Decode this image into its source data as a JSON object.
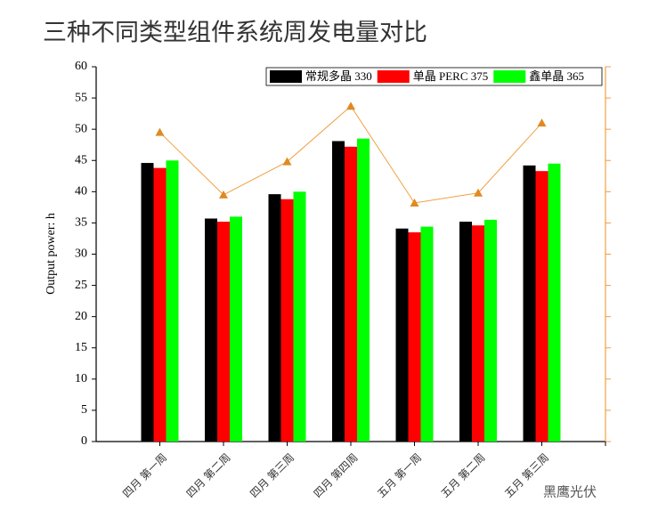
{
  "chart_data": {
    "type": "bar",
    "title": "三种不同类型组件系统周发电量对比",
    "y_label": "Output power: h",
    "categories": [
      "四月 第一周",
      "四月 第二周",
      "四月 第三周",
      "四月 第四周",
      "五月 第一周",
      "五月 第二周",
      "五月 第三周",
      null
    ],
    "series": [
      {
        "name": "常规多晶 330",
        "color": "#000000",
        "values": [
          44.6,
          35.7,
          39.6,
          48.1,
          34.1,
          35.2,
          44.2,
          null
        ]
      },
      {
        "name": "单晶 PERC 375",
        "color": "#ff0000",
        "values": [
          43.8,
          35.2,
          38.8,
          47.2,
          33.5,
          34.6,
          43.3,
          null
        ]
      },
      {
        "name": "鑫单晶 365",
        "color": "#00ff00",
        "values": [
          45.0,
          36.0,
          40.0,
          48.5,
          34.4,
          35.5,
          44.5,
          null
        ]
      },
      {
        "type": "line",
        "axis": "y2",
        "color": "#f0a040",
        "values": [
          49.5,
          39.5,
          44.8,
          53.7,
          38.2,
          39.8,
          51.0,
          null
        ]
      }
    ],
    "ylim": [
      0,
      60
    ],
    "yticks": [
      0,
      5,
      10,
      15,
      20,
      25,
      30,
      35,
      40,
      45,
      50,
      55,
      60
    ],
    "y2lim": [
      0,
      60
    ],
    "legend": "top-right",
    "watermark": "黑鹰光伏"
  }
}
